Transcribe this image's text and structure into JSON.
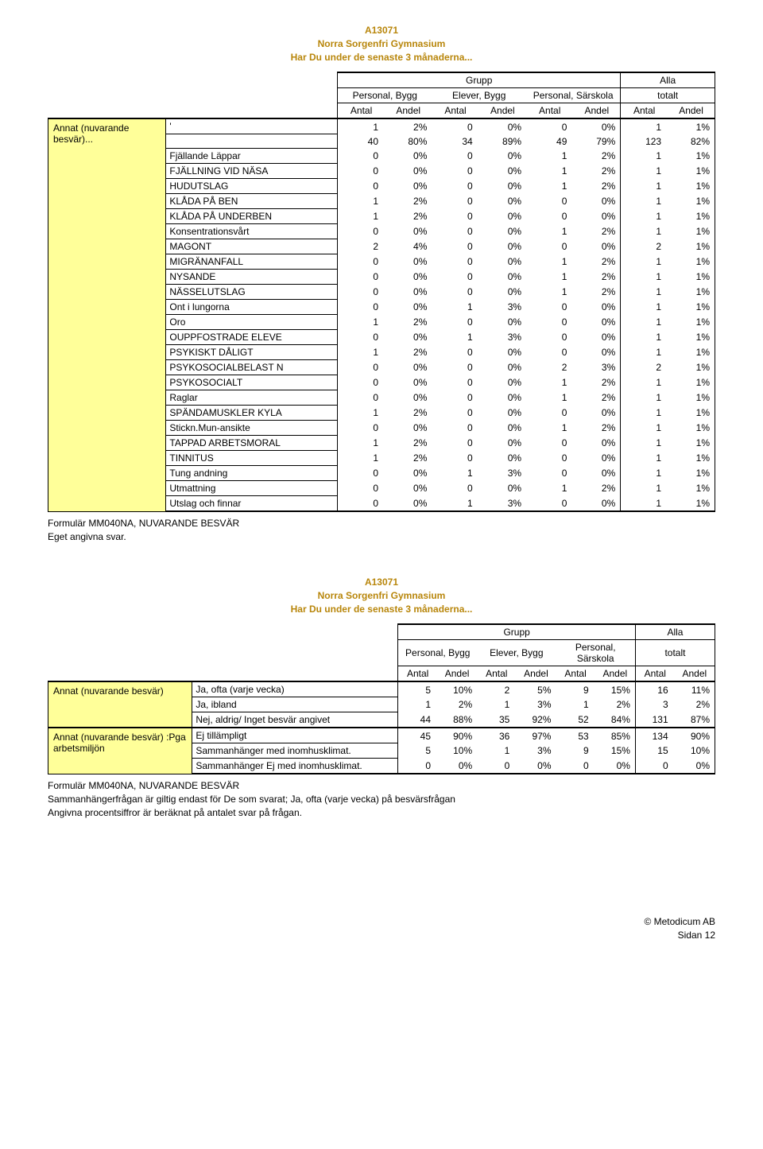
{
  "heading": {
    "code": "A13071",
    "school": "Norra Sorgenfri Gymnasium",
    "question": "Har Du under de senaste 3 månaderna..."
  },
  "columns": {
    "grupp": "Grupp",
    "alla": "Alla",
    "g1": "Personal, Bygg",
    "g2": "Elever, Bygg",
    "g3": "Personal, Särskola",
    "g4": "totalt",
    "antal": "Antal",
    "andel": "Andel"
  },
  "table1": {
    "label_main": "Annat (nuvarande besvär)...",
    "rows": [
      {
        "label": "'",
        "v": [
          1,
          "2%",
          0,
          "0%",
          0,
          "0%",
          1,
          "1%"
        ]
      },
      {
        "label": "",
        "v": [
          40,
          "80%",
          34,
          "89%",
          49,
          "79%",
          123,
          "82%"
        ]
      },
      {
        "label": "Fjällande Läppar",
        "v": [
          0,
          "0%",
          0,
          "0%",
          1,
          "2%",
          1,
          "1%"
        ]
      },
      {
        "label": "FJÄLLNING VID NÄSA",
        "v": [
          0,
          "0%",
          0,
          "0%",
          1,
          "2%",
          1,
          "1%"
        ]
      },
      {
        "label": "HUDUTSLAG",
        "v": [
          0,
          "0%",
          0,
          "0%",
          1,
          "2%",
          1,
          "1%"
        ]
      },
      {
        "label": "KLÅDA PÅ BEN",
        "v": [
          1,
          "2%",
          0,
          "0%",
          0,
          "0%",
          1,
          "1%"
        ]
      },
      {
        "label": "KLÅDA PÅ UNDERBEN",
        "v": [
          1,
          "2%",
          0,
          "0%",
          0,
          "0%",
          1,
          "1%"
        ]
      },
      {
        "label": "Konsentrationsvårt",
        "v": [
          0,
          "0%",
          0,
          "0%",
          1,
          "2%",
          1,
          "1%"
        ]
      },
      {
        "label": "MAGONT",
        "v": [
          2,
          "4%",
          0,
          "0%",
          0,
          "0%",
          2,
          "1%"
        ]
      },
      {
        "label": "MIGRÄNANFALL",
        "v": [
          0,
          "0%",
          0,
          "0%",
          1,
          "2%",
          1,
          "1%"
        ]
      },
      {
        "label": "NYSANDE",
        "v": [
          0,
          "0%",
          0,
          "0%",
          1,
          "2%",
          1,
          "1%"
        ]
      },
      {
        "label": "NÄSSELUTSLAG",
        "v": [
          0,
          "0%",
          0,
          "0%",
          1,
          "2%",
          1,
          "1%"
        ]
      },
      {
        "label": "Ont i lungorna",
        "v": [
          0,
          "0%",
          1,
          "3%",
          0,
          "0%",
          1,
          "1%"
        ]
      },
      {
        "label": "Oro",
        "v": [
          1,
          "2%",
          0,
          "0%",
          0,
          "0%",
          1,
          "1%"
        ]
      },
      {
        "label": "OUPPFOSTRADE ELEVE",
        "v": [
          0,
          "0%",
          1,
          "3%",
          0,
          "0%",
          1,
          "1%"
        ]
      },
      {
        "label": "PSYKISKT DÅLIGT",
        "v": [
          1,
          "2%",
          0,
          "0%",
          0,
          "0%",
          1,
          "1%"
        ]
      },
      {
        "label": "PSYKOSOCIALBELAST N",
        "v": [
          0,
          "0%",
          0,
          "0%",
          2,
          "3%",
          2,
          "1%"
        ]
      },
      {
        "label": "PSYKOSOCIALT",
        "v": [
          0,
          "0%",
          0,
          "0%",
          1,
          "2%",
          1,
          "1%"
        ]
      },
      {
        "label": "Raglar",
        "v": [
          0,
          "0%",
          0,
          "0%",
          1,
          "2%",
          1,
          "1%"
        ]
      },
      {
        "label": "SPÄNDAMUSKLER KYLA",
        "v": [
          1,
          "2%",
          0,
          "0%",
          0,
          "0%",
          1,
          "1%"
        ]
      },
      {
        "label": "Stickn.Mun-ansikte",
        "v": [
          0,
          "0%",
          0,
          "0%",
          1,
          "2%",
          1,
          "1%"
        ]
      },
      {
        "label": "TAPPAD ARBETSMORAL",
        "v": [
          1,
          "2%",
          0,
          "0%",
          0,
          "0%",
          1,
          "1%"
        ]
      },
      {
        "label": "TINNITUS",
        "v": [
          1,
          "2%",
          0,
          "0%",
          0,
          "0%",
          1,
          "1%"
        ]
      },
      {
        "label": "Tung andning",
        "v": [
          0,
          "0%",
          1,
          "3%",
          0,
          "0%",
          1,
          "1%"
        ]
      },
      {
        "label": "Utmattning",
        "v": [
          0,
          "0%",
          0,
          "0%",
          1,
          "2%",
          1,
          "1%"
        ]
      },
      {
        "label": "Utslag och finnar",
        "v": [
          0,
          "0%",
          1,
          "3%",
          0,
          "0%",
          1,
          "1%"
        ]
      }
    ],
    "footnote1": "Formulär MM040NA, NUVARANDE BESVÄR",
    "footnote2": "Eget angivna svar."
  },
  "table2": {
    "label1": "Annat (nuvarande besvär)",
    "label2": "Annat (nuvarande besvär) :Pga arbetsmiljön",
    "rows1": [
      {
        "label": "Ja, ofta (varje vecka)",
        "v": [
          5,
          "10%",
          2,
          "5%",
          9,
          "15%",
          16,
          "11%"
        ]
      },
      {
        "label": "Ja, ibland",
        "v": [
          1,
          "2%",
          1,
          "3%",
          1,
          "2%",
          3,
          "2%"
        ]
      },
      {
        "label": "Nej, aldrig/ Inget besvär angivet",
        "v": [
          44,
          "88%",
          35,
          "92%",
          52,
          "84%",
          131,
          "87%"
        ]
      }
    ],
    "rows2": [
      {
        "label": "Ej tillämpligt",
        "v": [
          45,
          "90%",
          36,
          "97%",
          53,
          "85%",
          134,
          "90%"
        ]
      },
      {
        "label": "Sammanhänger med inomhusklimat.",
        "v": [
          5,
          "10%",
          1,
          "3%",
          9,
          "15%",
          15,
          "10%"
        ]
      },
      {
        "label": "Sammanhänger Ej med inomhusklimat.",
        "v": [
          0,
          "0%",
          0,
          "0%",
          0,
          "0%",
          0,
          "0%"
        ]
      }
    ],
    "footnote1": "Formulär MM040NA, NUVARANDE BESVÄR",
    "footnote2": "Sammanhängerfrågan är giltig endast för De som svarat; Ja, ofta (varje vecka) på besvärsfrågan",
    "footnote3": "Angivna procentsiffror är beräknat på antalet svar på frågan."
  },
  "footer": {
    "copyright": "© Metodicum AB",
    "page": "Sidan 12"
  }
}
